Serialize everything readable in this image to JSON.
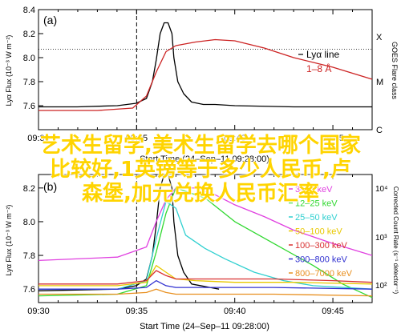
{
  "chart_data": [
    {
      "type": "line",
      "panel_letter": "(a)",
      "ylabel": "Lyα Flux (10⁻³ W m⁻²)",
      "right_axis_label": "GOES Flare class",
      "right_ticks": [
        "X",
        "M",
        "C"
      ],
      "xlim": [
        "09:30",
        "09:47"
      ],
      "ylim": [
        7.4,
        8.4
      ],
      "yticks": [
        7.6,
        7.8,
        8.0,
        8.2,
        8.4
      ],
      "xticks": [
        "09:30",
        "09:35",
        "09:40",
        "09:45"
      ],
      "xlabel": "Start Time (24–Sep–11 09:28:00)",
      "vertical_marker": "09:35",
      "horizontal_marker": 8.07,
      "grid": false,
      "legend": {
        "position": "top-right",
        "entries": [
          {
            "label": "Lyα line",
            "color": "#000000"
          },
          {
            "label": "1–8 Å",
            "color": "#cc2222"
          }
        ]
      },
      "series": [
        {
          "name": "Lyα line",
          "color": "#000000",
          "x": [
            9.5,
            9.533,
            9.567,
            9.567,
            9.583,
            9.5917,
            9.5967,
            9.6,
            9.6033,
            9.6067,
            9.61,
            9.6133,
            9.615,
            9.6183,
            9.6233,
            9.63,
            9.64,
            9.65,
            9.6667,
            9.7167,
            9.7833
          ],
          "y": [
            7.59,
            7.59,
            7.6,
            7.6,
            7.62,
            7.66,
            7.8,
            7.98,
            8.2,
            8.29,
            8.29,
            8.2,
            8.0,
            7.8,
            7.7,
            7.63,
            7.61,
            7.61,
            7.6,
            7.59,
            7.59
          ]
        },
        {
          "name": "1–8 Å",
          "color": "#cc2222",
          "x": [
            9.5,
            9.55,
            9.58,
            9.5917,
            9.6,
            9.6083,
            9.6167,
            9.6333,
            9.65,
            9.6667,
            9.6917,
            9.7167,
            9.75,
            9.7833
          ],
          "y": [
            7.56,
            7.56,
            7.58,
            7.68,
            7.88,
            8.05,
            8.1,
            8.13,
            8.15,
            8.14,
            8.08,
            8.0,
            7.92,
            7.82
          ]
        }
      ]
    },
    {
      "type": "line",
      "panel_letter": "(b)",
      "ylabel": "Lyα Flux (10⁻³ W m⁻²)",
      "right_axis_label": "Corrected Count Rate (s⁻¹ detector⁻¹)",
      "right_ticks": [
        "10⁴",
        "10³",
        "10²"
      ],
      "xlim": [
        "09:30",
        "09:47"
      ],
      "ylim": [
        7.52,
        8.28
      ],
      "yticks": [
        7.6,
        7.8,
        8.0,
        8.2
      ],
      "xticks": [
        "09:30",
        "09:35",
        "09:40",
        "09:45"
      ],
      "xlabel": "Start Time (24–Sep–11 09:28:00)",
      "vertical_marker": "09:35",
      "grid": false,
      "legend": {
        "position": "top-right",
        "entries": [
          {
            "label": "3–12 keV",
            "color": "#e040e0"
          },
          {
            "label": "12–25 keV",
            "color": "#30d830"
          },
          {
            "label": "25–50 keV",
            "color": "#30d0d0"
          },
          {
            "label": "50–100 keV",
            "color": "#e8c800"
          },
          {
            "label": "100–300 keV",
            "color": "#d83030"
          },
          {
            "label": "300–800 keV",
            "color": "#3030d0"
          },
          {
            "label": "800–7000 keV",
            "color": "#e89020"
          }
        ]
      },
      "series": [
        {
          "name": "Lyα line",
          "color": "#000000",
          "x": [
            9.5,
            9.567,
            9.583,
            9.5917,
            9.5967,
            9.6,
            9.6033,
            9.6067,
            9.61,
            9.6133,
            9.615,
            9.6183,
            9.6233,
            9.63,
            9.6533
          ],
          "y": [
            7.59,
            7.6,
            7.62,
            7.66,
            7.8,
            7.98,
            8.2,
            8.28,
            8.28,
            8.2,
            8.0,
            7.8,
            7.7,
            7.63,
            7.6
          ]
        },
        {
          "name": "3–12 keV",
          "color": "#e040e0",
          "x": [
            9.5,
            9.567,
            9.5917,
            9.6,
            9.6083,
            9.6167,
            9.6333,
            9.65,
            9.6667,
            9.6917,
            9.7167,
            9.75,
            9.7833
          ],
          "y": [
            7.77,
            7.79,
            7.85,
            8.0,
            8.13,
            8.2,
            8.2,
            8.16,
            8.1,
            8.03,
            7.95,
            7.87,
            7.8
          ]
        },
        {
          "name": "12–25 keV",
          "color": "#30d830",
          "x": [
            9.5,
            9.567,
            9.5917,
            9.6,
            9.6083,
            9.6167,
            9.6417,
            9.6667,
            9.7,
            9.7333,
            9.7583,
            9.7833
          ],
          "y": [
            7.56,
            7.57,
            7.62,
            7.82,
            8.05,
            8.2,
            8.14,
            8.0,
            7.87,
            7.74,
            7.63,
            7.55
          ]
        },
        {
          "name": "25–50 keV",
          "color": "#30d0d0",
          "x": [
            9.5,
            9.567,
            9.5917,
            9.6,
            9.6083,
            9.6167,
            9.625,
            9.6417,
            9.6583,
            9.6833,
            9.7083,
            9.7333,
            9.7833
          ],
          "y": [
            7.6,
            7.6,
            7.65,
            7.9,
            8.12,
            8.08,
            7.92,
            7.84,
            7.78,
            7.7,
            7.65,
            7.62,
            7.6
          ]
        },
        {
          "name": "50–100 keV",
          "color": "#e8c800",
          "x": [
            9.5,
            9.567,
            9.5917,
            9.6,
            9.6083,
            9.6167,
            9.6333,
            9.6667,
            9.7167,
            9.7833
          ],
          "y": [
            7.62,
            7.62,
            7.64,
            7.74,
            7.7,
            7.66,
            7.65,
            7.64,
            7.64,
            7.63
          ]
        },
        {
          "name": "100–300 keV",
          "color": "#d83030",
          "x": [
            9.5,
            9.567,
            9.5917,
            9.6,
            9.6083,
            9.6167,
            9.65,
            9.7,
            9.75,
            9.7833
          ],
          "y": [
            7.63,
            7.63,
            7.65,
            7.71,
            7.68,
            7.66,
            7.66,
            7.66,
            7.65,
            7.64
          ]
        },
        {
          "name": "300–800 keV",
          "color": "#3030d0",
          "x": [
            9.5,
            9.567,
            9.5917,
            9.6,
            9.6083,
            9.6167,
            9.7,
            9.7833
          ],
          "y": [
            7.6,
            7.6,
            7.61,
            7.65,
            7.62,
            7.61,
            7.61,
            7.6
          ]
        },
        {
          "name": "800–7000 keV",
          "color": "#e89020",
          "x": [
            9.5,
            9.567,
            9.5917,
            9.6,
            9.6083,
            9.6167,
            9.7,
            9.7833
          ],
          "y": [
            7.57,
            7.57,
            7.58,
            7.6,
            7.58,
            7.57,
            7.57,
            7.56
          ]
        }
      ]
    }
  ],
  "overlay_text": [
    "艺术生留学,美术生留学去哪个国家",
    "比较好,1英镑等于多少人民币,卢",
    "森堡,加元兑换人民币汇率"
  ]
}
